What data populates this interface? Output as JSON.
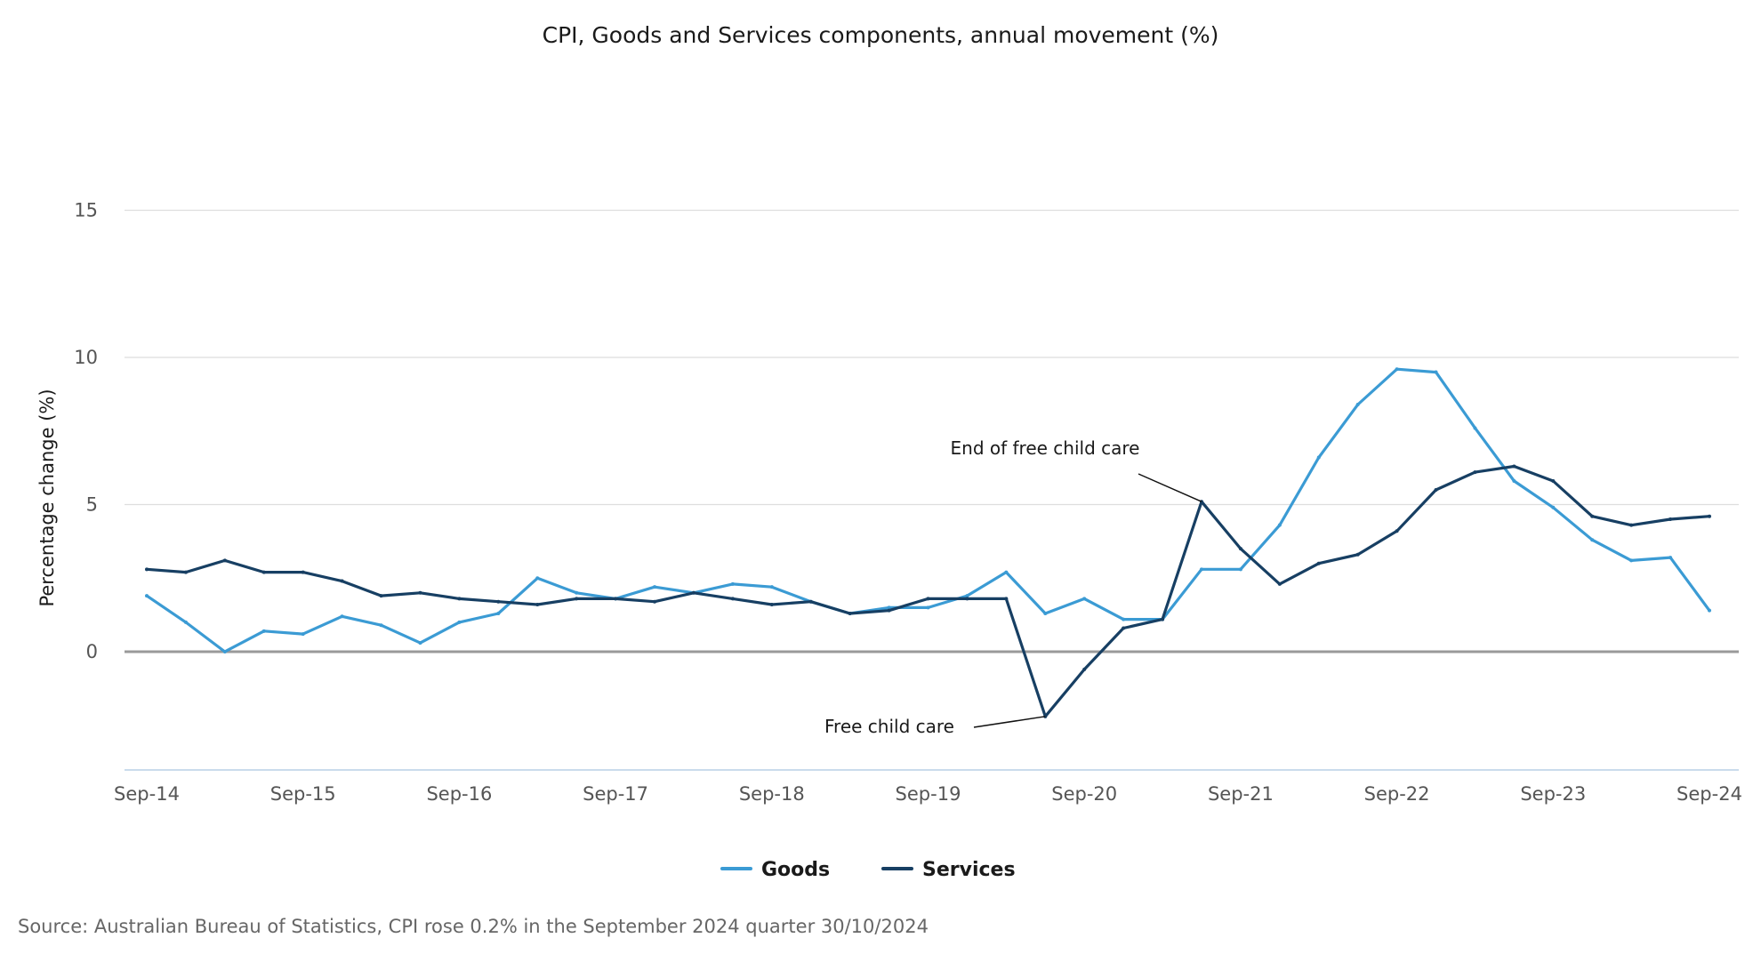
{
  "chart_data": {
    "type": "line",
    "title": "CPI, Goods and Services components, annual movement (%)",
    "ylabel": "Percentage change (%)",
    "xlabel": "",
    "ylim": [
      -4,
      15
    ],
    "yticks": [
      0,
      5,
      10,
      15
    ],
    "ytick_labels": [
      "0",
      "5",
      "10",
      "15"
    ],
    "x_tick_labels": [
      {
        "index": 0,
        "label": "Sep-14"
      },
      {
        "index": 4,
        "label": "Sep-15"
      },
      {
        "index": 8,
        "label": "Sep-16"
      },
      {
        "index": 12,
        "label": "Sep-17"
      },
      {
        "index": 16,
        "label": "Sep-18"
      },
      {
        "index": 20,
        "label": "Sep-19"
      },
      {
        "index": 24,
        "label": "Sep-20"
      },
      {
        "index": 28,
        "label": "Sep-21"
      },
      {
        "index": 32,
        "label": "Sep-22"
      },
      {
        "index": 36,
        "label": "Sep-23"
      },
      {
        "index": 40,
        "label": "Sep-24"
      }
    ],
    "n_points": 41,
    "series": [
      {
        "name": "Goods",
        "color": "#3b9bd4",
        "values": [
          1.9,
          1.0,
          0.0,
          0.7,
          0.6,
          1.2,
          0.9,
          0.3,
          1.0,
          1.3,
          2.5,
          2.0,
          1.8,
          2.2,
          2.0,
          2.3,
          2.2,
          1.7,
          1.3,
          1.5,
          1.5,
          1.9,
          2.7,
          1.3,
          1.8,
          1.1,
          1.1,
          2.8,
          2.8,
          4.3,
          6.6,
          8.4,
          9.6,
          9.5,
          7.6,
          5.8,
          4.9,
          3.8,
          3.1,
          3.2,
          1.4
        ]
      },
      {
        "name": "Services",
        "color": "#173f63",
        "values": [
          2.8,
          2.7,
          3.1,
          2.7,
          2.7,
          2.4,
          1.9,
          2.0,
          1.8,
          1.7,
          1.6,
          1.8,
          1.8,
          1.7,
          2.0,
          1.8,
          1.6,
          1.7,
          1.3,
          1.4,
          1.8,
          1.8,
          1.8,
          -2.2,
          -0.6,
          0.8,
          1.1,
          5.1,
          3.5,
          2.3,
          3.0,
          3.3,
          4.1,
          5.5,
          6.1,
          6.3,
          5.8,
          4.6,
          4.3,
          4.5,
          4.6
        ]
      }
    ],
    "annotations": [
      {
        "text": "End of free child care",
        "series": "Services",
        "index": 27
      },
      {
        "text": "Free child care",
        "series": "Services",
        "index": 23
      }
    ],
    "legend": {
      "position": "bottom-center",
      "items": [
        "Goods",
        "Services"
      ]
    },
    "grid": true
  },
  "source": "Source: Australian Bureau of Statistics, CPI rose 0.2% in the September 2024 quarter 30/10/2024"
}
